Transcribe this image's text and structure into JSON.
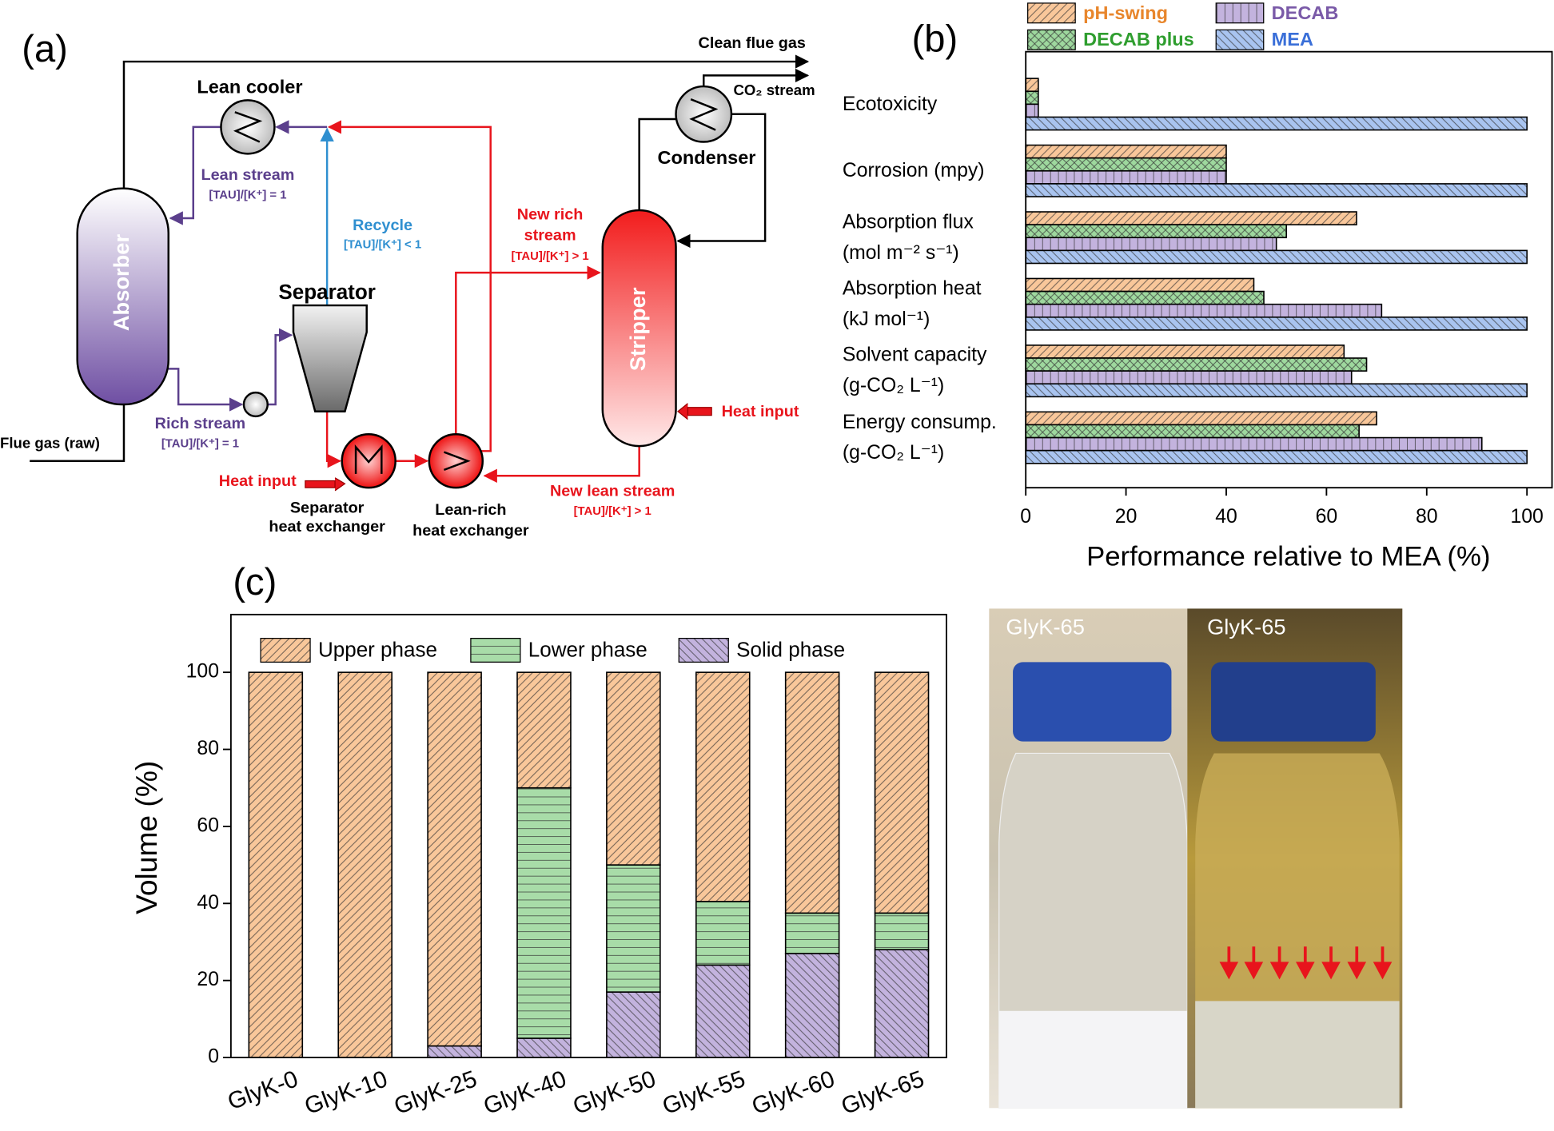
{
  "panel_labels": [
    "(a)",
    "(b)",
    "(c)"
  ],
  "diagram": {
    "absorber": "Absorber",
    "separator": "Separator",
    "stripper": "Stripper",
    "lean_cooler": "Lean cooler",
    "condenser": "Condenser",
    "separator_hx": [
      "Separator",
      "heat exchanger"
    ],
    "lean_rich_hx": [
      "Lean-rich",
      "heat exchanger"
    ],
    "clean_flue_gas": "Clean flue gas",
    "co2_stream": "CO₂ stream",
    "flue_gas_raw": "Flue gas (raw)",
    "lean_stream": [
      "Lean stream",
      "[TAU]/[K⁺] = 1"
    ],
    "rich_stream": [
      "Rich stream",
      "[TAU]/[K⁺] = 1"
    ],
    "recycle": [
      "Recycle",
      "[TAU]/[K⁺] < 1"
    ],
    "new_rich_stream": [
      "New rich",
      "stream",
      "[TAU]/[K⁺] > 1"
    ],
    "new_lean_stream": [
      "New lean stream",
      "[TAU]/[K⁺] > 1"
    ],
    "heat_input_separator": "Heat input",
    "heat_input_stripper": "Heat input"
  },
  "chart_data": [
    {
      "type": "hbar",
      "x_label": "Performance relative to MEA (%)",
      "categories": [
        "Ecotoxicity",
        "Corrosion (mpy)",
        "Absorption flux\n(mol m⁻² s⁻¹)",
        "Absorption heat\n(kJ mol⁻¹)",
        "Solvent capacity\n(g-CO₂ L⁻¹)",
        "Energy consump.\n(g-CO₂ L⁻¹)"
      ],
      "series": [
        {
          "name": "pH-swing",
          "color": "#f9c79a",
          "label_color": "#e8862c",
          "values": [
            2.5,
            40,
            66,
            45.5,
            63.5,
            70
          ]
        },
        {
          "name": "DECAB plus",
          "color": "#9ed89e",
          "label_color": "#2f9e2f",
          "values": [
            2.5,
            40,
            52,
            47.5,
            68,
            66.5
          ]
        },
        {
          "name": "DECAB",
          "color": "#c3b3de",
          "label_color": "#7a5aa8",
          "values": [
            2.5,
            40,
            50,
            71,
            65,
            91
          ]
        },
        {
          "name": "MEA",
          "color": "#a9c4f0",
          "label_color": "#3a6fd8",
          "values": [
            100,
            100,
            100,
            100,
            100,
            100
          ]
        }
      ],
      "xlim": [
        0,
        105
      ],
      "xticks": [
        0,
        20,
        40,
        60,
        80,
        100
      ]
    },
    {
      "type": "stacked_bar",
      "y_label": "Volume (%)",
      "categories": [
        "GlyK-0",
        "GlyK-10",
        "GlyK-25",
        "GlyK-40",
        "GlyK-50",
        "GlyK-55",
        "GlyK-60",
        "GlyK-65"
      ],
      "series": [
        {
          "name": "Upper phase",
          "color": "#f9c79a",
          "values": [
            100,
            100,
            97,
            30,
            50,
            59.5,
            62.5,
            62.5
          ]
        },
        {
          "name": "Lower phase",
          "color": "#a8dca8",
          "values": [
            0,
            0,
            0,
            65,
            33,
            16.5,
            10.5,
            9.5
          ]
        },
        {
          "name": "Solid phase",
          "color": "#c3b3de",
          "values": [
            0,
            0,
            3,
            5,
            17,
            24,
            27,
            28
          ]
        }
      ],
      "ylim": [
        0,
        115
      ],
      "yticks": [
        0,
        20,
        40,
        60,
        80,
        100
      ]
    }
  ],
  "photos": [
    "GlyK-65",
    "GlyK-65"
  ]
}
